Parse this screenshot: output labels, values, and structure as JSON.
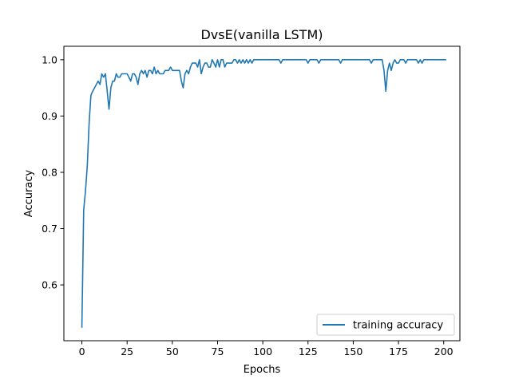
{
  "chart_data": {
    "type": "line",
    "title": "DvsE(vanilla LSTM)",
    "xlabel": "Epochs",
    "ylabel": "Accuracy",
    "xlim": [
      -9.95,
      208.95
    ],
    "ylim": [
      0.5009,
      1.0239
    ],
    "xticks": [
      0,
      25,
      50,
      75,
      100,
      125,
      150,
      175,
      200
    ],
    "yticks": [
      0.6,
      0.7,
      0.8,
      0.9,
      1.0
    ],
    "xtick_labels": [
      "0",
      "25",
      "50",
      "75",
      "100",
      "125",
      "150",
      "175",
      "200"
    ],
    "ytick_labels": [
      "0.6",
      "0.7",
      "0.8",
      "0.9",
      "1.0"
    ],
    "legend_position": "lower right",
    "series": [
      {
        "name": "training accuracy",
        "color": "#1f77b4",
        "x_start": 0,
        "values": [
          0.525,
          0.733,
          0.767,
          0.812,
          0.887,
          0.937,
          0.944,
          0.95,
          0.956,
          0.962,
          0.956,
          0.975,
          0.969,
          0.975,
          0.944,
          0.912,
          0.95,
          0.962,
          0.962,
          0.975,
          0.969,
          0.969,
          0.975,
          0.975,
          0.975,
          0.975,
          0.969,
          0.962,
          0.975,
          0.975,
          0.969,
          0.956,
          0.975,
          0.981,
          0.975,
          0.981,
          0.969,
          0.981,
          0.981,
          0.975,
          0.987,
          0.975,
          0.981,
          0.975,
          0.975,
          0.975,
          0.981,
          0.981,
          0.981,
          0.987,
          0.981,
          0.981,
          0.981,
          0.981,
          0.981,
          0.962,
          0.95,
          0.975,
          0.981,
          0.975,
          0.987,
          0.994,
          0.994,
          0.994,
          0.987,
          1.0,
          0.975,
          0.987,
          0.994,
          0.994,
          0.987,
          0.987,
          1.0,
          0.994,
          0.987,
          1.0,
          0.987,
          1.0,
          1.0,
          0.987,
          0.994,
          0.994,
          0.994,
          0.994,
          1.0,
          1.0,
          0.994,
          1.0,
          0.994,
          1.0,
          0.994,
          1.0,
          0.994,
          1.0,
          0.994,
          1.0,
          1.0,
          1.0,
          1.0,
          1.0,
          1.0,
          1.0,
          1.0,
          1.0,
          1.0,
          1.0,
          1.0,
          1.0,
          1.0,
          1.0,
          0.994,
          1.0,
          1.0,
          1.0,
          1.0,
          1.0,
          1.0,
          1.0,
          1.0,
          1.0,
          1.0,
          1.0,
          1.0,
          1.0,
          1.0,
          0.994,
          1.0,
          1.0,
          1.0,
          1.0,
          1.0,
          0.994,
          1.0,
          1.0,
          1.0,
          1.0,
          1.0,
          1.0,
          1.0,
          1.0,
          1.0,
          1.0,
          1.0,
          0.994,
          1.0,
          1.0,
          1.0,
          1.0,
          1.0,
          1.0,
          1.0,
          1.0,
          1.0,
          1.0,
          1.0,
          1.0,
          1.0,
          1.0,
          1.0,
          1.0,
          0.994,
          1.0,
          1.0,
          1.0,
          1.0,
          1.0,
          1.0,
          0.981,
          0.944,
          0.981,
          0.994,
          0.981,
          0.994,
          1.0,
          0.994,
          0.994,
          1.0,
          1.0,
          1.0,
          0.994,
          1.0,
          1.0,
          1.0,
          1.0,
          1.0,
          1.0,
          0.994,
          1.0,
          0.994,
          1.0,
          1.0,
          1.0,
          1.0,
          1.0,
          1.0,
          1.0,
          1.0,
          1.0,
          1.0,
          1.0,
          1.0,
          1.0
        ]
      }
    ]
  }
}
